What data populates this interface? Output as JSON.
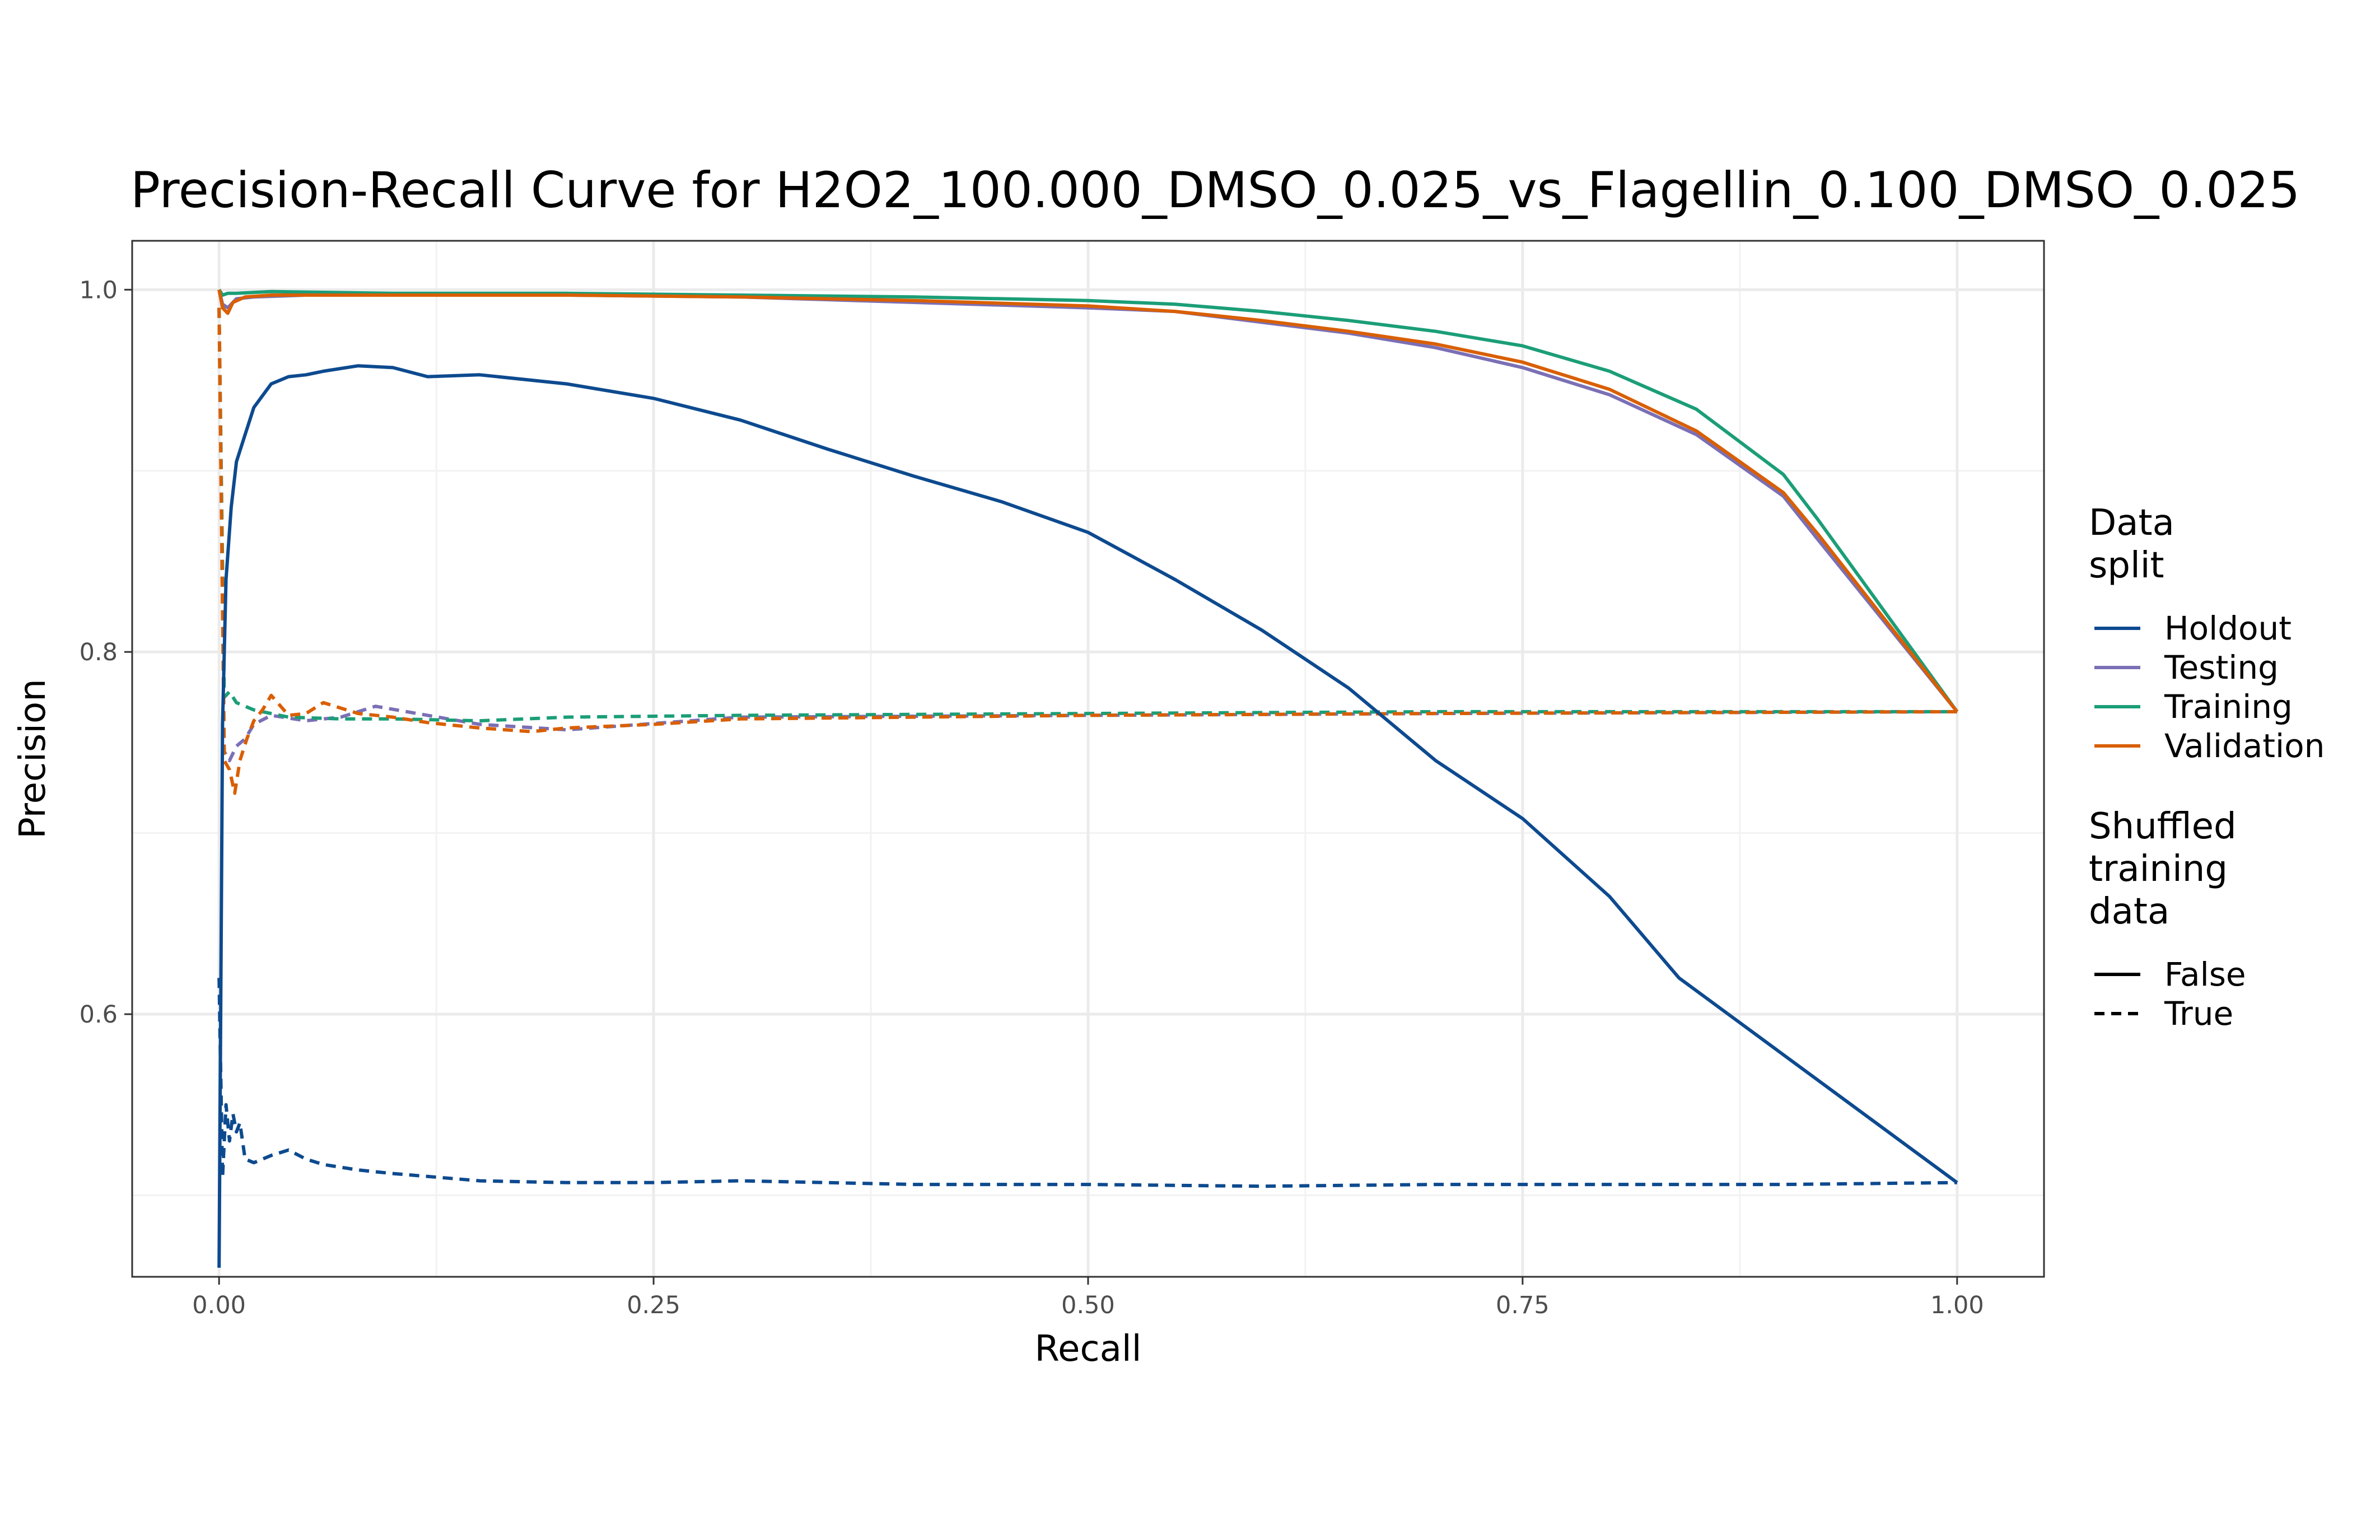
{
  "chart_data": {
    "type": "line",
    "title": "Precision-Recall Curve for H2O2_100.000_DMSO_0.025_vs_Flagellin_0.100_DMSO_0.025",
    "xlabel": "Recall",
    "ylabel": "Precision",
    "xlim": [
      -0.05,
      1.05
    ],
    "ylim": [
      0.455,
      1.027
    ],
    "x_ticks": [
      0.0,
      0.25,
      0.5,
      0.75,
      1.0
    ],
    "x_tick_labels": [
      "0.00",
      "0.25",
      "0.50",
      "0.75",
      "1.00"
    ],
    "y_ticks": [
      0.6,
      0.8,
      1.0
    ],
    "y_tick_labels": [
      "0.6",
      "0.8",
      "1.0"
    ],
    "grid": true,
    "legend_position": "right",
    "legends": [
      {
        "title": [
          "Data",
          "split"
        ],
        "kind": "color",
        "entries": [
          {
            "label": "Holdout",
            "color": "#0d4a8f"
          },
          {
            "label": "Testing",
            "color": "#7b6fb5"
          },
          {
            "label": "Training",
            "color": "#1b9e77"
          },
          {
            "label": "Validation",
            "color": "#d95f02"
          }
        ]
      },
      {
        "title": [
          "Shuffled",
          "training",
          "data"
        ],
        "kind": "linetype",
        "entries": [
          {
            "label": "False",
            "dash": "solid"
          },
          {
            "label": "True",
            "dash": "dashed"
          }
        ]
      }
    ],
    "series": [
      {
        "split": "Holdout",
        "shuffled": "False",
        "color": "#0d4a8f",
        "dash": "solid",
        "x": [
          0.0,
          0.002,
          0.004,
          0.007,
          0.01,
          0.015,
          0.02,
          0.03,
          0.04,
          0.05,
          0.06,
          0.08,
          0.1,
          0.12,
          0.15,
          0.2,
          0.25,
          0.3,
          0.35,
          0.4,
          0.45,
          0.5,
          0.55,
          0.6,
          0.65,
          0.7,
          0.75,
          0.8,
          0.84,
          1.0
        ],
        "y": [
          0.46,
          0.76,
          0.84,
          0.88,
          0.905,
          0.92,
          0.935,
          0.948,
          0.952,
          0.953,
          0.955,
          0.958,
          0.957,
          0.952,
          0.953,
          0.948,
          0.94,
          0.928,
          0.912,
          0.897,
          0.883,
          0.866,
          0.84,
          0.812,
          0.78,
          0.74,
          0.708,
          0.665,
          0.62,
          0.507
        ]
      },
      {
        "split": "Testing",
        "shuffled": "False",
        "color": "#7b6fb5",
        "dash": "solid",
        "x": [
          0.0,
          0.002,
          0.005,
          0.01,
          0.02,
          0.05,
          0.1,
          0.2,
          0.3,
          0.4,
          0.5,
          0.55,
          0.6,
          0.65,
          0.7,
          0.75,
          0.8,
          0.85,
          0.9,
          0.92,
          1.0
        ],
        "y": [
          1.0,
          0.992,
          0.99,
          0.995,
          0.996,
          0.997,
          0.997,
          0.997,
          0.996,
          0.993,
          0.99,
          0.988,
          0.982,
          0.976,
          0.968,
          0.957,
          0.942,
          0.92,
          0.886,
          0.862,
          0.767
        ]
      },
      {
        "split": "Training",
        "shuffled": "False",
        "color": "#1b9e77",
        "dash": "solid",
        "x": [
          0.0,
          0.002,
          0.005,
          0.01,
          0.03,
          0.1,
          0.2,
          0.3,
          0.4,
          0.5,
          0.55,
          0.6,
          0.65,
          0.7,
          0.75,
          0.8,
          0.85,
          0.9,
          0.92,
          1.0
        ],
        "y": [
          1.0,
          0.997,
          0.998,
          0.998,
          0.999,
          0.998,
          0.998,
          0.997,
          0.996,
          0.994,
          0.992,
          0.988,
          0.983,
          0.977,
          0.969,
          0.955,
          0.934,
          0.898,
          0.873,
          0.767
        ]
      },
      {
        "split": "Validation",
        "shuffled": "False",
        "color": "#d95f02",
        "dash": "solid",
        "x": [
          0.0,
          0.002,
          0.005,
          0.008,
          0.015,
          0.03,
          0.1,
          0.2,
          0.3,
          0.4,
          0.5,
          0.55,
          0.6,
          0.65,
          0.7,
          0.75,
          0.8,
          0.85,
          0.9,
          0.92,
          1.0
        ],
        "y": [
          1.0,
          0.99,
          0.987,
          0.993,
          0.996,
          0.997,
          0.997,
          0.997,
          0.996,
          0.994,
          0.991,
          0.988,
          0.983,
          0.977,
          0.97,
          0.96,
          0.945,
          0.922,
          0.888,
          0.865,
          0.767
        ]
      },
      {
        "split": "Holdout",
        "shuffled": "True",
        "color": "#0d4a8f",
        "dash": "dashed",
        "x": [
          0.0,
          0.002,
          0.004,
          0.006,
          0.008,
          0.01,
          0.012,
          0.015,
          0.02,
          0.03,
          0.04,
          0.05,
          0.06,
          0.08,
          0.1,
          0.15,
          0.2,
          0.25,
          0.3,
          0.4,
          0.5,
          0.6,
          0.7,
          0.8,
          0.9,
          1.0
        ],
        "y": [
          0.62,
          0.51,
          0.55,
          0.53,
          0.545,
          0.535,
          0.54,
          0.52,
          0.518,
          0.522,
          0.525,
          0.52,
          0.517,
          0.514,
          0.512,
          0.508,
          0.507,
          0.507,
          0.508,
          0.506,
          0.506,
          0.505,
          0.506,
          0.506,
          0.506,
          0.507
        ]
      },
      {
        "split": "Testing",
        "shuffled": "True",
        "color": "#7b6fb5",
        "dash": "dashed",
        "x": [
          0.0,
          0.003,
          0.006,
          0.01,
          0.015,
          0.02,
          0.03,
          0.05,
          0.07,
          0.09,
          0.12,
          0.15,
          0.2,
          0.3,
          0.5,
          0.7,
          1.0
        ],
        "y": [
          0.99,
          0.745,
          0.74,
          0.748,
          0.752,
          0.76,
          0.765,
          0.762,
          0.764,
          0.77,
          0.765,
          0.76,
          0.757,
          0.764,
          0.765,
          0.766,
          0.767
        ]
      },
      {
        "split": "Training",
        "shuffled": "True",
        "color": "#1b9e77",
        "dash": "dashed",
        "x": [
          0.0,
          0.003,
          0.006,
          0.01,
          0.02,
          0.04,
          0.07,
          0.1,
          0.15,
          0.2,
          0.3,
          0.5,
          0.7,
          1.0
        ],
        "y": [
          0.99,
          0.775,
          0.778,
          0.772,
          0.768,
          0.764,
          0.763,
          0.763,
          0.762,
          0.764,
          0.765,
          0.766,
          0.767,
          0.767
        ]
      },
      {
        "split": "Validation",
        "shuffled": "True",
        "color": "#d95f02",
        "dash": "dashed",
        "x": [
          0.0,
          0.003,
          0.006,
          0.009,
          0.012,
          0.016,
          0.02,
          0.025,
          0.03,
          0.04,
          0.05,
          0.06,
          0.08,
          0.1,
          0.12,
          0.15,
          0.18,
          0.2,
          0.25,
          0.3,
          0.4,
          0.5,
          0.7,
          1.0
        ],
        "y": [
          0.99,
          0.74,
          0.735,
          0.722,
          0.74,
          0.752,
          0.762,
          0.768,
          0.776,
          0.765,
          0.766,
          0.772,
          0.766,
          0.764,
          0.761,
          0.758,
          0.756,
          0.758,
          0.76,
          0.763,
          0.764,
          0.765,
          0.766,
          0.767
        ]
      }
    ]
  }
}
